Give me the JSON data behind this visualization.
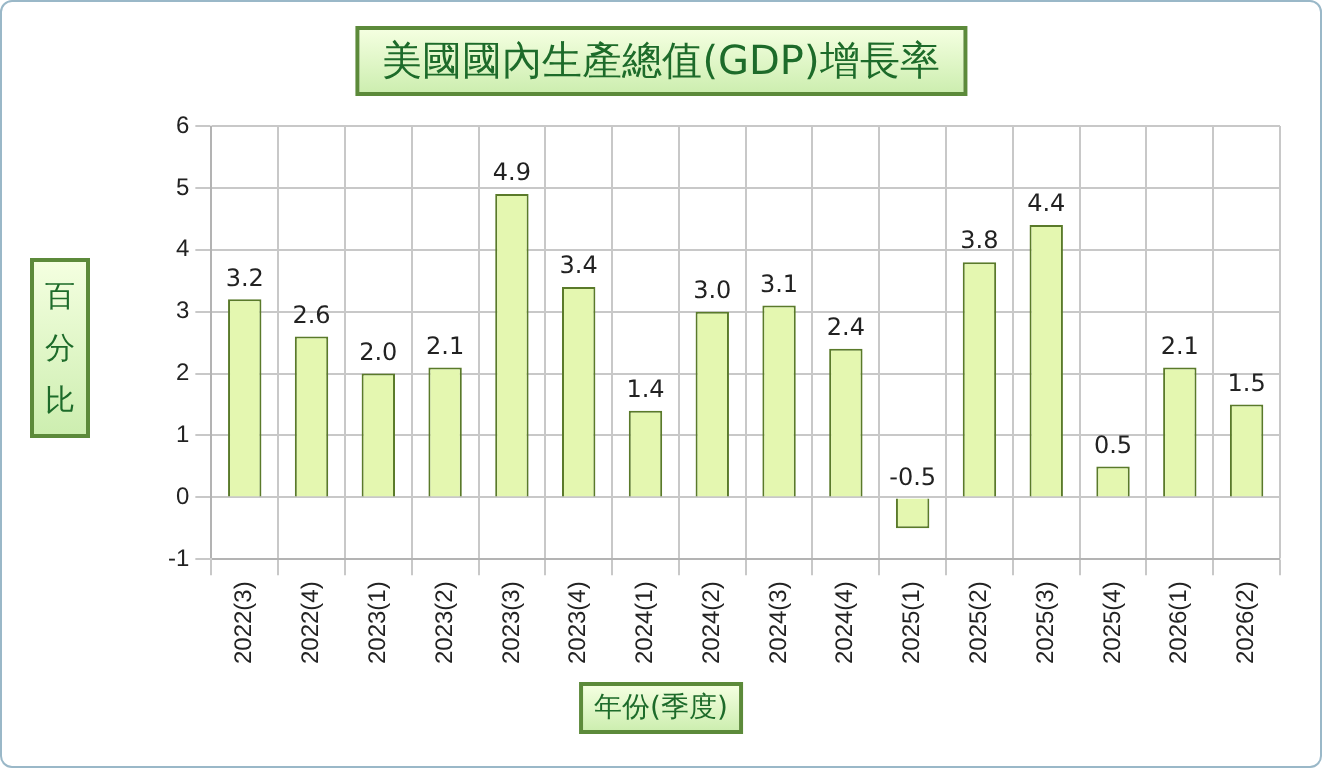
{
  "chart_data": {
    "type": "bar",
    "title": "美國國內生產總值(GDP)增長率",
    "xlabel": "年份(季度)",
    "ylabel": "百分比",
    "categories": [
      "2022(3)",
      "2022(4)",
      "2023(1)",
      "2023(2)",
      "2023(3)",
      "2023(4)",
      "2024(1)",
      "2024(2)",
      "2024(3)",
      "2024(4)",
      "2025(1)",
      "2025(2)",
      "2025(3)",
      "2025(4)",
      "2026(1)",
      "2026(2)"
    ],
    "values": [
      3.2,
      2.6,
      2.0,
      2.1,
      4.9,
      3.4,
      1.4,
      3.0,
      3.1,
      2.4,
      -0.5,
      3.8,
      4.4,
      0.5,
      2.1,
      1.5
    ],
    "color": "#e4f7b0",
    "value_labels": [
      "3.2",
      "2.6",
      "2.0",
      "2.1",
      "4.9",
      "3.4",
      "1.4",
      "3.0",
      "3.1",
      "2.4",
      "-0.5",
      "3.8",
      "4.4",
      "0.5",
      "2.1",
      "1.5"
    ],
    "ylim": [
      -1,
      6
    ],
    "yticks": [
      -1,
      0,
      1,
      2,
      3,
      4,
      5,
      6
    ],
    "grid": true
  }
}
